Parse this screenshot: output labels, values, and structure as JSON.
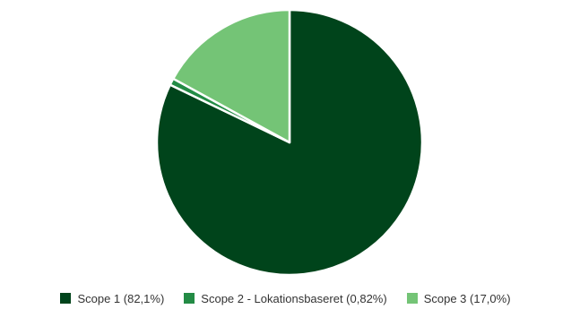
{
  "chart_data": {
    "type": "pie",
    "title": "",
    "series": [
      {
        "name": "Scope 1",
        "label": "Scope 1 (82,1%)",
        "value": 82.1,
        "color": "#00441b"
      },
      {
        "name": "Scope 2 - Lokationsbaseret",
        "label": "Scope 2 - Lokationsbaseret (0,82%)",
        "value": 0.82,
        "color": "#238b45"
      },
      {
        "name": "Scope 3",
        "label": "Scope 3 (17,0%)",
        "value": 17.0,
        "color": "#74c476"
      }
    ],
    "start_angle_deg": 0,
    "direction": "clockwise",
    "legend_position": "bottom"
  }
}
